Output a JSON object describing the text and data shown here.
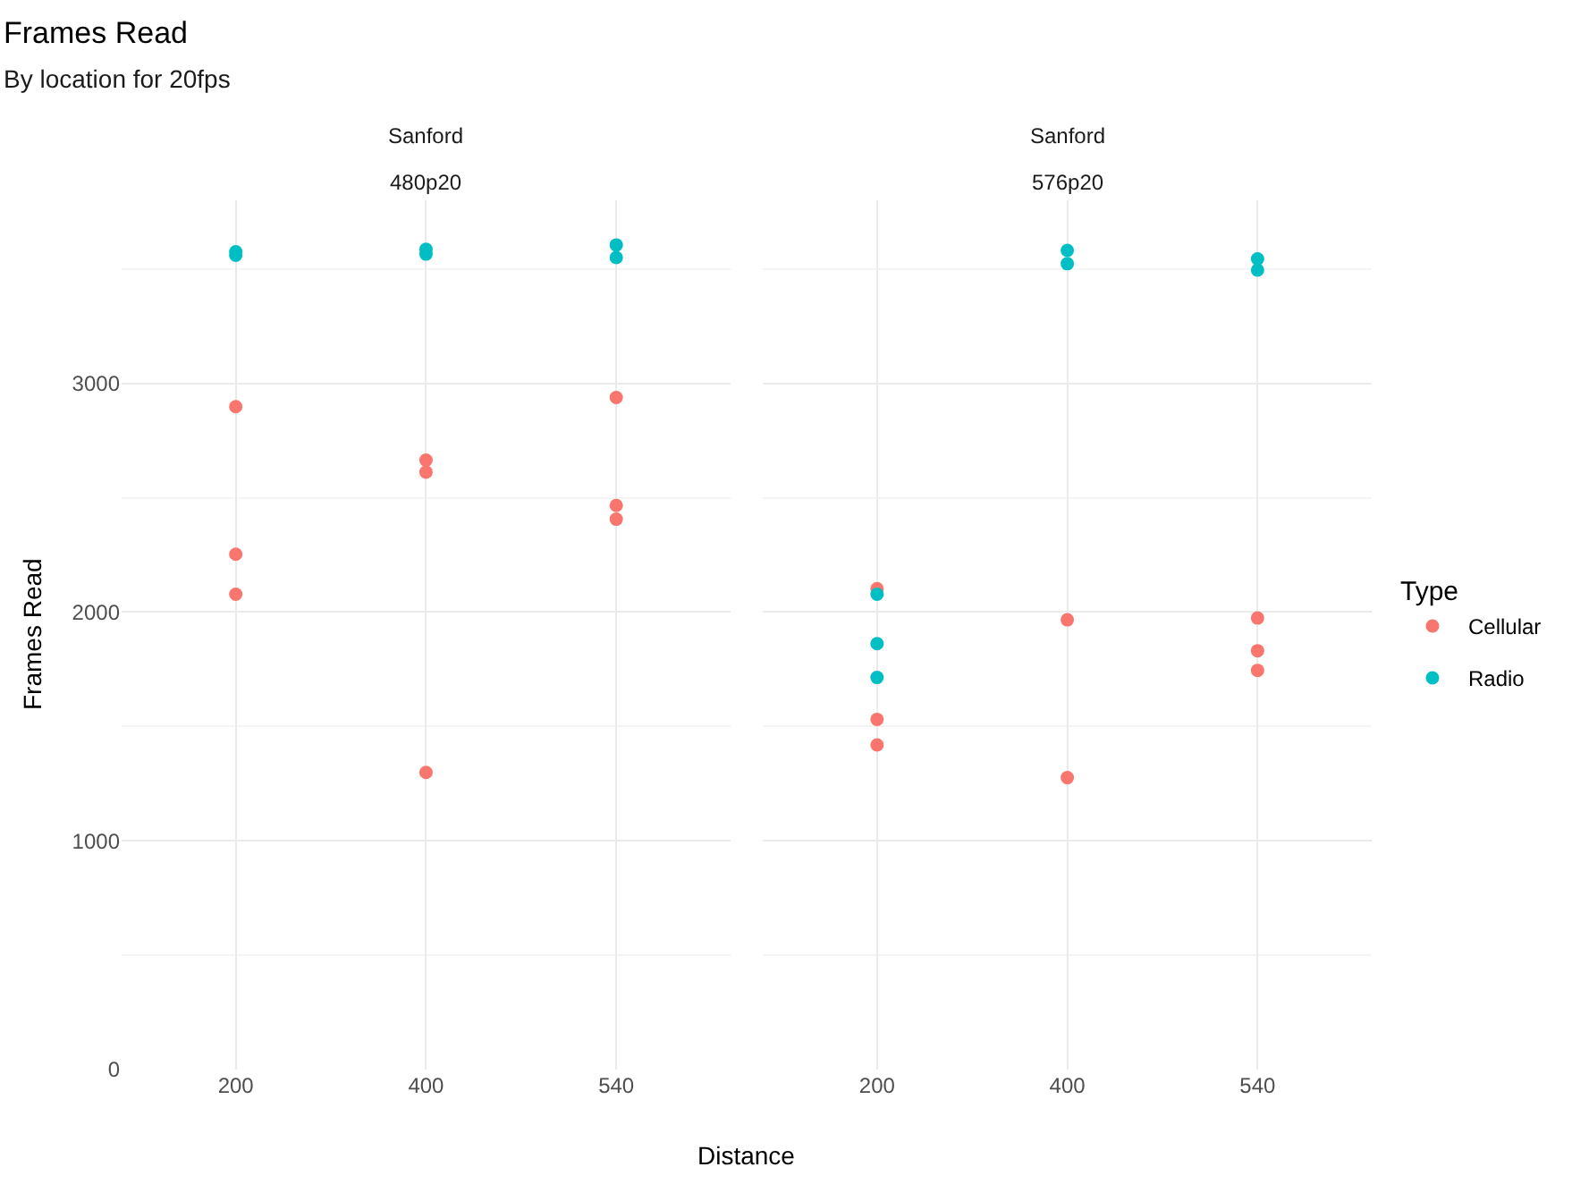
{
  "chart_data": [
    {
      "type": "scatter",
      "title": "Frames Read",
      "subtitle": "By location for 20fps",
      "annotations": [
        "Sanford",
        "480p20"
      ],
      "xlabel": "Distance",
      "ylabel": "Frames Read",
      "categories": [
        "200",
        "400",
        "540"
      ],
      "ylim": [
        0,
        3800
      ],
      "yticks": [
        0,
        1000,
        2000,
        3000
      ],
      "grid": true,
      "marker": "circle",
      "legend": "right",
      "legend_title": "Type",
      "series": [
        {
          "name": "Cellular",
          "color": "#f8766d",
          "x": [
            "200",
            "200",
            "200",
            "400",
            "400",
            "400",
            "540",
            "540",
            "540"
          ],
          "values": [
            2898,
            2253,
            2078,
            2664,
            2612,
            1299,
            2938,
            2466,
            2406
          ]
        },
        {
          "name": "Radio",
          "color": "#00bfc4",
          "x": [
            "200",
            "200",
            "400",
            "400",
            "540",
            "540"
          ],
          "values": [
            3575,
            3560,
            3586,
            3565,
            3605,
            3550
          ]
        }
      ]
    },
    {
      "type": "scatter",
      "annotations": [
        "Sanford",
        "576p20"
      ],
      "categories": [
        "200",
        "400",
        "540"
      ],
      "ylim": [
        0,
        3800
      ],
      "yticks": [
        0,
        1000,
        2000,
        3000
      ],
      "grid": true,
      "marker": "circle",
      "tick_labels": "x",
      "legend": "right",
      "series": [
        {
          "name": "Cellular",
          "color": "#f8766d",
          "x": [
            "200",
            "200",
            "200",
            "400",
            "400",
            "540",
            "540",
            "540"
          ],
          "values": [
            2102,
            1531,
            1419,
            1966,
            1276,
            1974,
            1831,
            1745
          ]
        },
        {
          "name": "Radio",
          "color": "#00bfc4",
          "x": [
            "200",
            "200",
            "200",
            "400",
            "400",
            "540",
            "540"
          ],
          "values": [
            2078,
            1862,
            1714,
            3581,
            3523,
            3544,
            3495
          ]
        }
      ]
    }
  ]
}
